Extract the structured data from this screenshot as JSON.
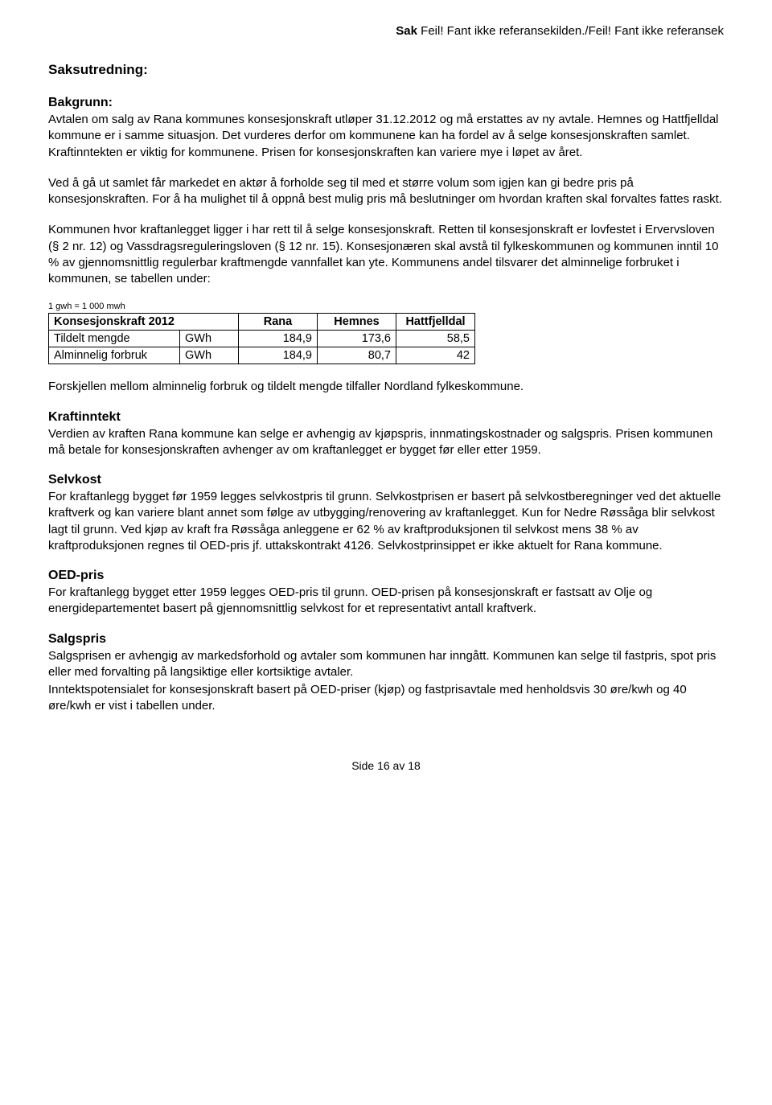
{
  "header": {
    "sak_label": "Sak",
    "error_text": " Feil! Fant ikke referansekilden./Feil! Fant ikke referansek"
  },
  "title": "Saksutredning:",
  "bakgrunn": {
    "heading": "Bakgrunn:",
    "p1": "Avtalen om salg av Rana kommunes konsesjonskraft utløper 31.12.2012 og må erstattes av ny avtale.  Hemnes og Hattfjelldal kommune er i samme situasjon.  Det vurderes derfor om kommunene kan ha fordel av å selge konsesjonskraften samlet.  Kraftinntekten er viktig for kommunene.  Prisen for konsesjonskraften kan variere mye i løpet av året.",
    "p2": "Ved å gå ut samlet får markedet en aktør å forholde seg til med et større volum som igjen kan gi bedre pris på konsesjonskraften.  For å ha mulighet til å oppnå best mulig pris må beslutninger om hvordan kraften skal forvaltes fattes raskt.",
    "p3": "Kommunen hvor kraftanlegget ligger i har rett til å selge konsesjonskraft.  Retten til konsesjonskraft er lovfestet i Ervervsloven (§ 2 nr. 12) og Vassdragsreguleringsloven (§ 12 nr. 15).  Konsesjonæren skal avstå til fylkeskommunen og kommunen inntil 10 % av gjennomsnittlig regulerbar kraftmengde vannfallet kan yte.  Kommunens andel tilsvarer det alminnelige forbruket i kommunen, se tabellen under:"
  },
  "table_note": "1 gwh = 1 000 mwh",
  "table": {
    "header_label": "Konsesjonskraft 2012",
    "cols": [
      "Rana",
      "Hemnes",
      "Hattfjelldal"
    ],
    "rows": [
      {
        "label": "Tildelt mengde",
        "unit": "GWh",
        "vals": [
          "184,9",
          "173,6",
          "58,5"
        ]
      },
      {
        "label": "Alminnelig forbruk",
        "unit": "GWh",
        "vals": [
          "184,9",
          "80,7",
          "42"
        ]
      }
    ]
  },
  "after_table": "Forskjellen mellom alminnelig forbruk og tildelt mengde tilfaller Nordland fylkeskommune.",
  "kraftinntekt": {
    "heading": "Kraftinntekt",
    "body": "Verdien av kraften Rana kommune kan selge er avhengig av kjøpspris, innmatingskostnader og salgspris.  Prisen kommunen må betale for konsesjonskraften avhenger av om kraftanlegget er bygget før eller etter 1959."
  },
  "selvkost": {
    "heading": "Selvkost",
    "body": "For kraftanlegg bygget før 1959 legges selvkostpris til grunn.  Selvkostprisen er basert på selvkostberegninger ved det aktuelle kraftverk og kan variere blant annet som følge av utbygging/renovering av kraftanlegget.  Kun for Nedre Røssåga blir selvkost lagt til grunn.  Ved kjøp av kraft fra Røssåga anleggene er 62 % av kraftproduksjonen til selvkost mens 38 % av kraftproduksjonen regnes til OED-pris jf. uttakskontrakt 4126.  Selvkostprinsippet er ikke aktuelt for Rana kommune."
  },
  "oed": {
    "heading": "OED-pris",
    "body": "For kraftanlegg bygget etter 1959 legges OED-pris til grunn. OED-prisen på konsesjonskraft er fastsatt av Olje og energidepartementet basert på gjennomsnittlig selvkost for et representativt antall kraftverk."
  },
  "salgspris": {
    "heading": "Salgspris",
    "p1": "Salgsprisen er avhengig av markedsforhold og avtaler som kommunen har inngått. Kommunen kan selge til fastpris, spot pris eller med forvalting på langsiktige eller kortsiktige avtaler.",
    "p2": "Inntektspotensialet for konsesjonskraft basert på OED-priser (kjøp) og fastprisavtale med henholdsvis 30 øre/kwh og 40 øre/kwh er vist i tabellen under."
  },
  "footer": "Side 16 av 18",
  "colors": {
    "text": "#000000",
    "background": "#ffffff",
    "table_border": "#000000"
  },
  "typography": {
    "body_font": "Arial",
    "body_size_pt": 11,
    "heading_weight": "bold",
    "table_note_size_pt": 8
  }
}
